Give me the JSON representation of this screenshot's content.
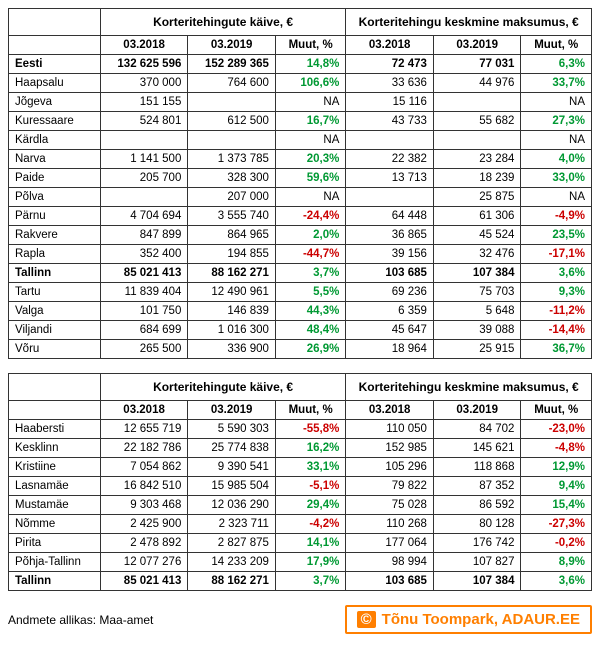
{
  "headers": {
    "group1": "Korteritehingute käive, €",
    "group2": "Korteritehingu keskmine maksumus, €",
    "c1": "03.2018",
    "c2": "03.2019",
    "c3": "Muut, %",
    "c4": "03.2018",
    "c5": "03.2019",
    "c6": "Muut, %"
  },
  "colors": {
    "positive": "#009933",
    "negative": "#cc0000",
    "attribution_border": "#ff7f00"
  },
  "table1": [
    {
      "label": "Eesti",
      "bold": true,
      "a": "132 625 596",
      "b": "152 289 365",
      "c": "14,8%",
      "cs": "pos",
      "d": "72 473",
      "e": "77 031",
      "f": "6,3%",
      "fs": "pos"
    },
    {
      "label": "Haapsalu",
      "a": "370 000",
      "b": "764 600",
      "c": "106,6%",
      "cs": "pos",
      "d": "33 636",
      "e": "44 976",
      "f": "33,7%",
      "fs": "pos"
    },
    {
      "label": "Jõgeva",
      "a": "151 155",
      "b": "",
      "c": "NA",
      "cs": "",
      "d": "15 116",
      "e": "",
      "f": "NA",
      "fs": ""
    },
    {
      "label": "Kuressaare",
      "a": "524 801",
      "b": "612 500",
      "c": "16,7%",
      "cs": "pos",
      "d": "43 733",
      "e": "55 682",
      "f": "27,3%",
      "fs": "pos"
    },
    {
      "label": "Kärdla",
      "a": "",
      "b": "",
      "c": "NA",
      "cs": "",
      "d": "",
      "e": "",
      "f": "NA",
      "fs": ""
    },
    {
      "label": "Narva",
      "a": "1 141 500",
      "b": "1 373 785",
      "c": "20,3%",
      "cs": "pos",
      "d": "22 382",
      "e": "23 284",
      "f": "4,0%",
      "fs": "pos"
    },
    {
      "label": "Paide",
      "a": "205 700",
      "b": "328 300",
      "c": "59,6%",
      "cs": "pos",
      "d": "13 713",
      "e": "18 239",
      "f": "33,0%",
      "fs": "pos"
    },
    {
      "label": "Põlva",
      "a": "",
      "b": "207 000",
      "c": "NA",
      "cs": "",
      "d": "",
      "e": "25 875",
      "f": "NA",
      "fs": ""
    },
    {
      "label": "Pärnu",
      "a": "4 704 694",
      "b": "3 555 740",
      "c": "-24,4%",
      "cs": "neg",
      "d": "64 448",
      "e": "61 306",
      "f": "-4,9%",
      "fs": "neg"
    },
    {
      "label": "Rakvere",
      "a": "847 899",
      "b": "864 965",
      "c": "2,0%",
      "cs": "pos",
      "d": "36 865",
      "e": "45 524",
      "f": "23,5%",
      "fs": "pos"
    },
    {
      "label": "Rapla",
      "a": "352 400",
      "b": "194 855",
      "c": "-44,7%",
      "cs": "neg",
      "d": "39 156",
      "e": "32 476",
      "f": "-17,1%",
      "fs": "neg"
    },
    {
      "label": "Tallinn",
      "bold": true,
      "a": "85 021 413",
      "b": "88 162 271",
      "c": "3,7%",
      "cs": "pos",
      "d": "103 685",
      "e": "107 384",
      "f": "3,6%",
      "fs": "pos"
    },
    {
      "label": "Tartu",
      "a": "11 839 404",
      "b": "12 490 961",
      "c": "5,5%",
      "cs": "pos",
      "d": "69 236",
      "e": "75 703",
      "f": "9,3%",
      "fs": "pos"
    },
    {
      "label": "Valga",
      "a": "101 750",
      "b": "146 839",
      "c": "44,3%",
      "cs": "pos",
      "d": "6 359",
      "e": "5 648",
      "f": "-11,2%",
      "fs": "neg"
    },
    {
      "label": "Viljandi",
      "a": "684 699",
      "b": "1 016 300",
      "c": "48,4%",
      "cs": "pos",
      "d": "45 647",
      "e": "39 088",
      "f": "-14,4%",
      "fs": "neg"
    },
    {
      "label": "Võru",
      "a": "265 500",
      "b": "336 900",
      "c": "26,9%",
      "cs": "pos",
      "d": "18 964",
      "e": "25 915",
      "f": "36,7%",
      "fs": "pos"
    }
  ],
  "table2": [
    {
      "label": "Haabersti",
      "a": "12 655 719",
      "b": "5 590 303",
      "c": "-55,8%",
      "cs": "neg",
      "d": "110 050",
      "e": "84 702",
      "f": "-23,0%",
      "fs": "neg"
    },
    {
      "label": "Kesklinn",
      "a": "22 182 786",
      "b": "25 774 838",
      "c": "16,2%",
      "cs": "pos",
      "d": "152 985",
      "e": "145 621",
      "f": "-4,8%",
      "fs": "neg"
    },
    {
      "label": "Kristiine",
      "a": "7 054 862",
      "b": "9 390 541",
      "c": "33,1%",
      "cs": "pos",
      "d": "105 296",
      "e": "118 868",
      "f": "12,9%",
      "fs": "pos"
    },
    {
      "label": "Lasnamäe",
      "a": "16 842 510",
      "b": "15 985 504",
      "c": "-5,1%",
      "cs": "neg",
      "d": "79 822",
      "e": "87 352",
      "f": "9,4%",
      "fs": "pos"
    },
    {
      "label": "Mustamäe",
      "a": "9 303 468",
      "b": "12 036 290",
      "c": "29,4%",
      "cs": "pos",
      "d": "75 028",
      "e": "86 592",
      "f": "15,4%",
      "fs": "pos"
    },
    {
      "label": "Nõmme",
      "a": "2 425 900",
      "b": "2 323 711",
      "c": "-4,2%",
      "cs": "neg",
      "d": "110 268",
      "e": "80 128",
      "f": "-27,3%",
      "fs": "neg"
    },
    {
      "label": "Pirita",
      "a": "2 478 892",
      "b": "2 827 875",
      "c": "14,1%",
      "cs": "pos",
      "d": "177 064",
      "e": "176 742",
      "f": "-0,2%",
      "fs": "neg"
    },
    {
      "label": "Põhja-Tallinn",
      "a": "12 077 276",
      "b": "14 233 209",
      "c": "17,9%",
      "cs": "pos",
      "d": "98 994",
      "e": "107 827",
      "f": "8,9%",
      "fs": "pos"
    },
    {
      "label": "Tallinn",
      "bold": true,
      "a": "85 021 413",
      "b": "88 162 271",
      "c": "3,7%",
      "cs": "pos",
      "d": "103 685",
      "e": "107 384",
      "f": "3,6%",
      "fs": "pos"
    }
  ],
  "source": "Andmete allikas: Maa-amet",
  "attribution": {
    "copy": "©",
    "text": "Tõnu Toompark, ADAUR.EE"
  }
}
